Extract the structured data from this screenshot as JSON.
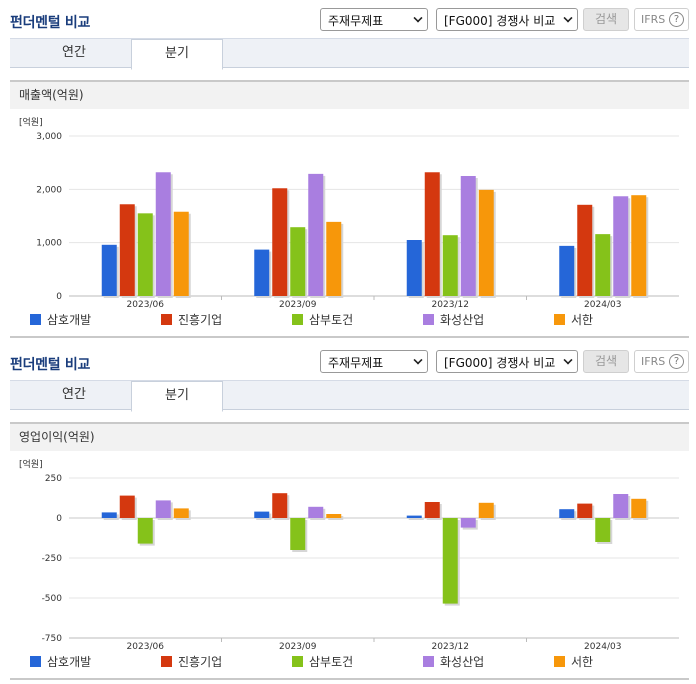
{
  "panels": [
    {
      "title": "펀더멘털 비교",
      "select_statement": "주재무제표",
      "select_compare": "[FG000] 경쟁사 비교",
      "search_label": "검색",
      "ifrs_label": "IFRS",
      "ifrs_help": "?",
      "tabs": [
        "연간",
        "분기"
      ],
      "active_tab": "분기",
      "subtitle": "매출액(억원)"
    },
    {
      "title": "펀더멘털 비교",
      "select_statement": "주재무제표",
      "select_compare": "[FG000] 경쟁사 비교",
      "search_label": "검색",
      "ifrs_label": "IFRS",
      "ifrs_help": "?",
      "tabs": [
        "연간",
        "분기"
      ],
      "active_tab": "분기",
      "subtitle": "영업이익(억원)"
    }
  ],
  "colors": [
    "#2566d8",
    "#d4380f",
    "#85c21a",
    "#a97ee0",
    "#f7970a"
  ],
  "chart_data": [
    {
      "type": "bar",
      "unit_label": "[억원]",
      "categories": [
        "2023/06",
        "2023/09",
        "2023/12",
        "2024/03"
      ],
      "ylim": [
        0,
        3000
      ],
      "yticks": [
        0,
        1000,
        2000,
        3000
      ],
      "ytick_labels": [
        "0",
        "1,000",
        "2,000",
        "3,000"
      ],
      "grid": true,
      "legend": "bottom",
      "series": [
        {
          "name": "삼호개발",
          "values": [
            960,
            870,
            1050,
            940
          ]
        },
        {
          "name": "진흥기업",
          "values": [
            1720,
            2020,
            2320,
            1710
          ]
        },
        {
          "name": "삼부토건",
          "values": [
            1550,
            1290,
            1140,
            1160
          ]
        },
        {
          "name": "화성산업",
          "values": [
            2320,
            2290,
            2250,
            1870
          ]
        },
        {
          "name": "서한",
          "values": [
            1580,
            1390,
            1990,
            1890
          ]
        }
      ]
    },
    {
      "type": "bar",
      "unit_label": "[억원]",
      "categories": [
        "2023/06",
        "2023/09",
        "2023/12",
        "2024/03"
      ],
      "ylim": [
        -750,
        250
      ],
      "yticks": [
        -750,
        -500,
        -250,
        0,
        250
      ],
      "ytick_labels": [
        "-750",
        "-500",
        "-250",
        "0",
        "250"
      ],
      "grid": true,
      "legend": "bottom",
      "series": [
        {
          "name": "삼호개발",
          "values": [
            35,
            40,
            15,
            55
          ]
        },
        {
          "name": "진흥기업",
          "values": [
            140,
            155,
            100,
            90
          ]
        },
        {
          "name": "삼부토건",
          "values": [
            -160,
            -200,
            -535,
            -150
          ]
        },
        {
          "name": "화성산업",
          "values": [
            110,
            70,
            -60,
            150
          ]
        },
        {
          "name": "서한",
          "values": [
            60,
            25,
            95,
            120
          ]
        }
      ]
    }
  ]
}
